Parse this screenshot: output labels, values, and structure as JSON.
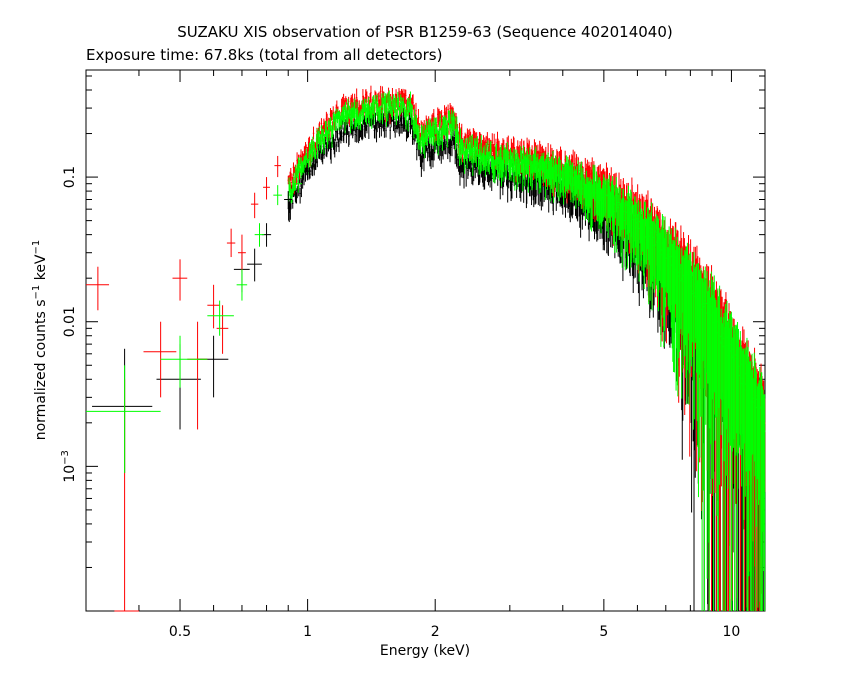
{
  "chart_data": {
    "type": "scatter",
    "title": "SUZAKU XIS observation of PSR B1259-63 (Sequence 402014040)",
    "subtitle": "Exposure time: 67.8ks (total from all detectors)",
    "xlabel": "Energy (keV)",
    "ylabel": {
      "prefix": "normalized counts s",
      "sup1": "−1",
      "mid": " keV",
      "sup2": "−1"
    },
    "xscale": "log",
    "yscale": "log",
    "xlim": [
      0.3,
      12
    ],
    "ylim": [
      0.0001,
      0.55
    ],
    "grid": false,
    "x_ticks": [
      {
        "value": 0.5,
        "label": "0.5"
      },
      {
        "value": 1,
        "label": "1"
      },
      {
        "value": 2,
        "label": "2"
      },
      {
        "value": 5,
        "label": "5"
      },
      {
        "value": 10,
        "label": "10"
      }
    ],
    "y_ticks": [
      {
        "value": 0.1,
        "label": "0.1"
      },
      {
        "value": 0.01,
        "label": "0.01"
      },
      {
        "value": 0.001,
        "label_base": "10",
        "label_exp": "−3"
      }
    ],
    "series_colors": [
      "#000000",
      "#ff0000",
      "#00ff00"
    ],
    "series": [
      {
        "color": "#000000",
        "points": [
          {
            "x": 0.37,
            "xlo": 0.31,
            "xhi": 0.43,
            "y": 0.0026,
            "ylo": 0.0009,
            "yhi": 0.0065
          },
          {
            "x": 0.5,
            "xlo": 0.44,
            "xhi": 0.56,
            "y": 0.004,
            "ylo": 0.0018,
            "yhi": 0.007
          },
          {
            "x": 0.6,
            "xlo": 0.55,
            "xhi": 0.65,
            "y": 0.0055,
            "ylo": 0.003,
            "yhi": 0.008
          },
          {
            "x": 0.7,
            "xlo": 0.67,
            "xhi": 0.73,
            "y": 0.023,
            "ylo": 0.016,
            "yhi": 0.03
          },
          {
            "x": 0.75,
            "xlo": 0.72,
            "xhi": 0.78,
            "y": 0.025,
            "ylo": 0.019,
            "yhi": 0.032
          },
          {
            "x": 0.8,
            "xlo": 0.78,
            "xhi": 0.82,
            "y": 0.04,
            "ylo": 0.033,
            "yhi": 0.048
          },
          {
            "x": 0.9,
            "xlo": 0.88,
            "xhi": 0.92,
            "y": 0.07,
            "ylo": 0.06,
            "yhi": 0.08
          },
          {
            "x": 1.0,
            "xlo": 0.98,
            "xhi": 1.02,
            "y": 0.11,
            "ylo": 0.095,
            "yhi": 0.125
          }
        ]
      },
      {
        "color": "#ff0000",
        "points": [
          {
            "x": 0.32,
            "xlo": 0.3,
            "xhi": 0.34,
            "y": 0.018,
            "ylo": 0.012,
            "yhi": 0.024
          },
          {
            "x": 0.37,
            "xlo": 0.35,
            "xhi": 0.4,
            "y": 0.0001,
            "ylo": 0.0001,
            "yhi": 0.004
          },
          {
            "x": 0.45,
            "xlo": 0.41,
            "xhi": 0.49,
            "y": 0.0062,
            "ylo": 0.003,
            "yhi": 0.01
          },
          {
            "x": 0.5,
            "xlo": 0.48,
            "xhi": 0.52,
            "y": 0.02,
            "ylo": 0.014,
            "yhi": 0.027
          },
          {
            "x": 0.55,
            "xlo": 0.52,
            "xhi": 0.58,
            "y": 0.0055,
            "ylo": 0.0018,
            "yhi": 0.01
          },
          {
            "x": 0.6,
            "xlo": 0.58,
            "xhi": 0.62,
            "y": 0.013,
            "ylo": 0.009,
            "yhi": 0.018
          },
          {
            "x": 0.63,
            "xlo": 0.61,
            "xhi": 0.65,
            "y": 0.009,
            "ylo": 0.006,
            "yhi": 0.013
          },
          {
            "x": 0.66,
            "xlo": 0.645,
            "xhi": 0.675,
            "y": 0.035,
            "ylo": 0.028,
            "yhi": 0.044
          },
          {
            "x": 0.7,
            "xlo": 0.685,
            "xhi": 0.715,
            "y": 0.03,
            "ylo": 0.022,
            "yhi": 0.04
          },
          {
            "x": 0.75,
            "xlo": 0.735,
            "xhi": 0.765,
            "y": 0.065,
            "ylo": 0.052,
            "yhi": 0.078
          },
          {
            "x": 0.8,
            "xlo": 0.785,
            "xhi": 0.815,
            "y": 0.085,
            "ylo": 0.07,
            "yhi": 0.1
          },
          {
            "x": 0.85,
            "xlo": 0.835,
            "xhi": 0.865,
            "y": 0.12,
            "ylo": 0.1,
            "yhi": 0.14
          }
        ]
      },
      {
        "color": "#00ff00",
        "points": [
          {
            "x": 0.37,
            "xlo": 0.3,
            "xhi": 0.45,
            "y": 0.0024,
            "ylo": 0.0009,
            "yhi": 0.005
          },
          {
            "x": 0.5,
            "xlo": 0.45,
            "xhi": 0.58,
            "y": 0.0055,
            "ylo": 0.0035,
            "yhi": 0.008
          },
          {
            "x": 0.62,
            "xlo": 0.58,
            "xhi": 0.67,
            "y": 0.011,
            "ylo": 0.008,
            "yhi": 0.014
          },
          {
            "x": 0.7,
            "xlo": 0.68,
            "xhi": 0.72,
            "y": 0.018,
            "ylo": 0.014,
            "yhi": 0.023
          },
          {
            "x": 0.77,
            "xlo": 0.75,
            "xhi": 0.79,
            "y": 0.04,
            "ylo": 0.033,
            "yhi": 0.048
          },
          {
            "x": 0.85,
            "xlo": 0.83,
            "xhi": 0.87,
            "y": 0.075,
            "ylo": 0.064,
            "yhi": 0.088
          },
          {
            "x": 0.95,
            "xlo": 0.93,
            "xhi": 0.97,
            "y": 0.09,
            "ylo": 0.078,
            "yhi": 0.103
          }
        ]
      }
    ],
    "dense_profile": [
      [
        0.9,
        0.08
      ],
      [
        1.0,
        0.14
      ],
      [
        1.1,
        0.2
      ],
      [
        1.2,
        0.26
      ],
      [
        1.4,
        0.3
      ],
      [
        1.6,
        0.31
      ],
      [
        1.75,
        0.3
      ],
      [
        1.85,
        0.18
      ],
      [
        2.0,
        0.21
      ],
      [
        2.2,
        0.24
      ],
      [
        2.3,
        0.16
      ],
      [
        2.6,
        0.15
      ],
      [
        3.0,
        0.13
      ],
      [
        3.5,
        0.12
      ],
      [
        4.0,
        0.105
      ],
      [
        4.5,
        0.09
      ],
      [
        5.0,
        0.075
      ],
      [
        5.5,
        0.062
      ],
      [
        6.0,
        0.05
      ],
      [
        6.5,
        0.04
      ],
      [
        7.0,
        0.03
      ],
      [
        8.0,
        0.018
      ],
      [
        9.0,
        0.011
      ],
      [
        10.0,
        0.006
      ],
      [
        11.0,
        0.0035
      ],
      [
        12.0,
        0.002
      ]
    ],
    "dense_series_order": [
      "#000000",
      "#ff0000",
      "#00ff00"
    ],
    "dense_offsets": [
      0.8,
      1.12,
      1.0
    ]
  }
}
